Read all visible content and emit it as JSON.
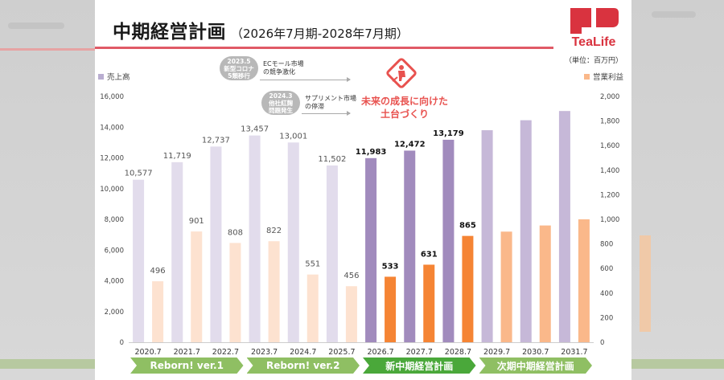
{
  "header": {
    "title": "中期経営計画",
    "subtitle": "（2026年7月期-2028年7月期）",
    "logo_text": "TeaLife",
    "unit_label": "（単位：百万円）"
  },
  "legend": {
    "sales": "売上高",
    "profit": "営業利益"
  },
  "events": [
    {
      "badge": [
        "2023.5",
        "新型コロナ",
        "5類移行"
      ],
      "text": [
        "ECモール市場",
        "の競争激化"
      ]
    },
    {
      "badge": [
        "2024.3",
        "他社紅麹",
        "問題発生"
      ],
      "text": [
        "サプリメント市場",
        "の停滞"
      ]
    }
  ],
  "future_message": [
    "未来の成長に向けた",
    "土台づくり"
  ],
  "icon": "construction-worker-icon",
  "colors": {
    "sales_past": "#e2dcec",
    "sales_plan": "#a18bbd",
    "sales_next": "#c6b8d8",
    "profit_past": "#fde2d0",
    "profit_plan": "#f58434",
    "profit_next": "#fab88a",
    "accent_red": "#e05a66",
    "phase_past": "#8fbf63",
    "phase_plan": "#4aa83a"
  },
  "chart_data": {
    "type": "bar",
    "categories": [
      "2020.7",
      "2021.7",
      "2022.7",
      "2023.7",
      "2024.7",
      "2025.7",
      "2026.7",
      "2027.7",
      "2028.7",
      "2029.7",
      "2030.7",
      "2031.7"
    ],
    "series": [
      {
        "name": "売上高",
        "axis": "left",
        "values": [
          10577,
          11719,
          12737,
          13457,
          13001,
          11502,
          11983,
          12472,
          13179,
          13800,
          14450,
          15050
        ],
        "labels": [
          "10,577",
          "11,719",
          "12,737",
          "13,457",
          "13,001",
          "11,502",
          "11,983",
          "12,472",
          "13,179",
          "",
          "",
          ""
        ]
      },
      {
        "name": "営業利益",
        "axis": "right",
        "values": [
          496,
          901,
          808,
          822,
          551,
          456,
          533,
          631,
          865,
          900,
          950,
          1000
        ],
        "labels": [
          "496",
          "901",
          "808",
          "822",
          "551",
          "456",
          "533",
          "631",
          "865",
          "",
          "",
          ""
        ]
      }
    ],
    "period_group": [
      "past",
      "past",
      "past",
      "past",
      "past",
      "past",
      "plan",
      "plan",
      "plan",
      "next",
      "next",
      "next"
    ],
    "left_axis": {
      "ylim": [
        0,
        16000
      ],
      "ticks": [
        "0",
        "2,000",
        "4,000",
        "6,000",
        "8,000",
        "10,000",
        "12,000",
        "14,000",
        "16,000"
      ]
    },
    "right_axis": {
      "ylim": [
        0,
        2000
      ],
      "ticks": [
        "0",
        "200",
        "400",
        "600",
        "800",
        "1,000",
        "1,200",
        "1,400",
        "1,600",
        "1,800",
        "2,000"
      ]
    },
    "phases": [
      {
        "label": "Reborn! ver.1",
        "from": 0,
        "to": 2
      },
      {
        "label": "Reborn! ver.2",
        "from": 3,
        "to": 5
      },
      {
        "label": "新中期経営計画",
        "from": 6,
        "to": 8
      },
      {
        "label": "次期中期経営計画",
        "from": 9,
        "to": 11
      }
    ],
    "legend_position": "top"
  }
}
